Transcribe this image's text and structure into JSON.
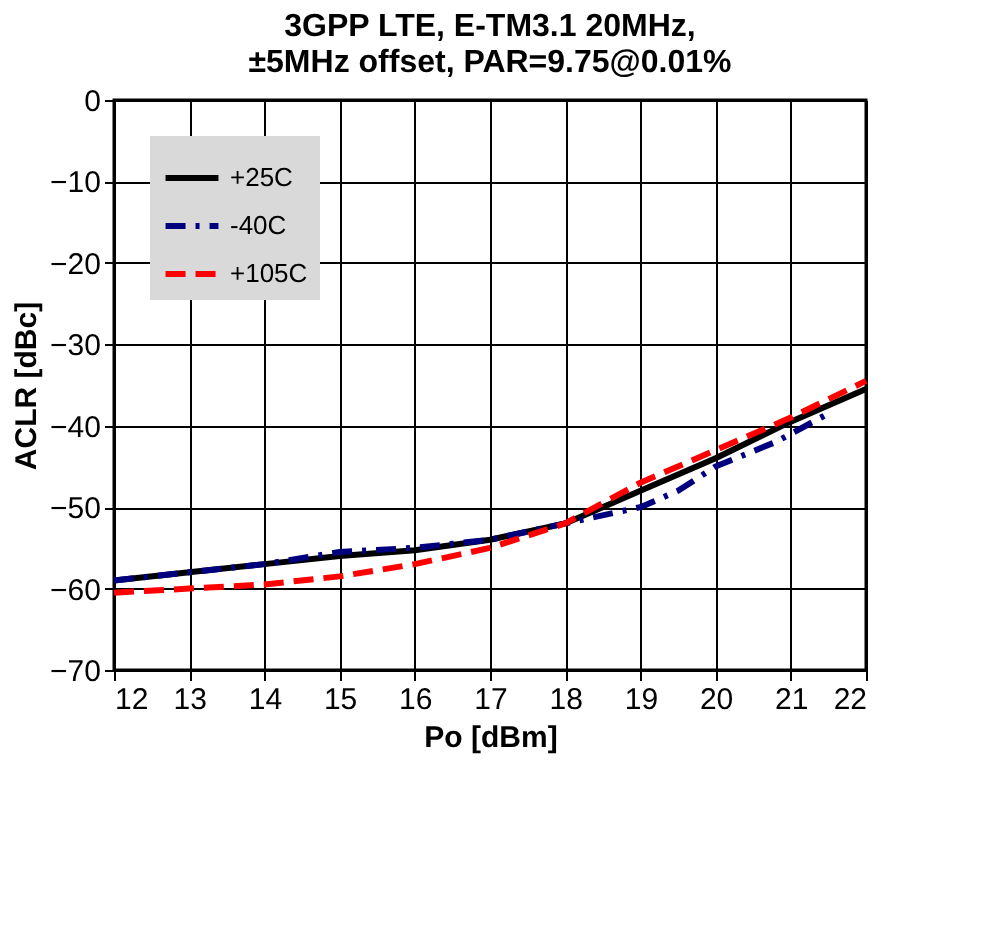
{
  "chart_data": {
    "type": "line",
    "title": [
      "3GPP LTE, E-TM3.1 20MHz,",
      "±5MHz offset, PAR=9.75@0.01%"
    ],
    "xlabel": "Po [dBm]",
    "ylabel": "ACLR [dBc]",
    "xlim": [
      12,
      22
    ],
    "xticks": [
      12,
      13,
      14,
      15,
      16,
      17,
      18,
      19,
      20,
      21,
      22
    ],
    "ylim": [
      -70,
      0
    ],
    "yticks": [
      -70,
      -60,
      -50,
      -40,
      -30,
      -20,
      -10,
      0
    ],
    "grid": true,
    "legend": "top left",
    "series": [
      {
        "name": "+25C",
        "color": "#000000",
        "line_style": "solid",
        "x": [
          12,
          13,
          14,
          15,
          16,
          17,
          18,
          19,
          20,
          21,
          22
        ],
        "values": [
          -59,
          -58,
          -57,
          -56,
          -55.3,
          -54,
          -52,
          -48,
          -44,
          -39.5,
          -35.5
        ]
      },
      {
        "name": "-40C",
        "color": "#00007f",
        "line_style": "dotted",
        "x": [
          12,
          13,
          14,
          15,
          16,
          17,
          18,
          19,
          19.5,
          20,
          20.8,
          21.5
        ],
        "values": [
          -59,
          -58,
          -57,
          -55.5,
          -55,
          -54,
          -52,
          -50,
          -48,
          -45,
          -42,
          -38.5
        ]
      },
      {
        "name": "+105C",
        "color": "#ff0000",
        "line_style": "dashed",
        "x": [
          12,
          13,
          14,
          15,
          16,
          17,
          18,
          19,
          20,
          21,
          22
        ],
        "values": [
          -60.5,
          -60,
          -59.5,
          -58.5,
          -57,
          -55,
          -52,
          -47,
          -43,
          -39,
          -34.5
        ]
      }
    ]
  }
}
